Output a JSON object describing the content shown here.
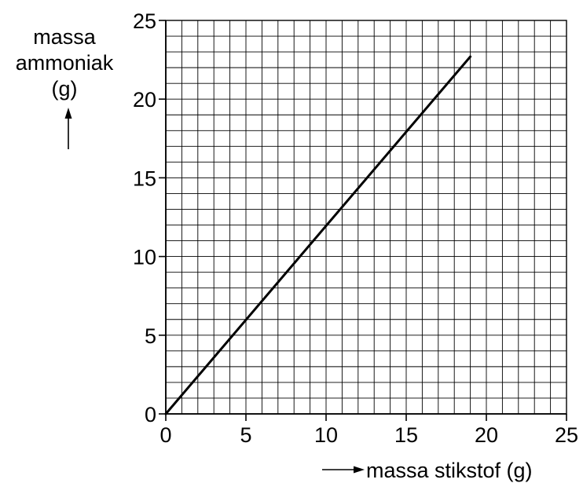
{
  "chart_data": {
    "type": "line",
    "title": "",
    "ylabel_lines": [
      "massa",
      "ammoniak",
      "(g)"
    ],
    "xlabel": "massa stikstof (g)",
    "xlim": [
      0,
      25
    ],
    "ylim": [
      0,
      25
    ],
    "x_ticks": [
      "0",
      "5",
      "10",
      "15",
      "20",
      "25"
    ],
    "y_ticks": [
      "0",
      "5",
      "10",
      "15",
      "20",
      "25"
    ],
    "minor_grid_step": 1,
    "grid": true,
    "legend": "none",
    "series": [
      {
        "x": [
          0,
          19
        ],
        "y": [
          0,
          22.7
        ],
        "color": "#000000"
      }
    ]
  }
}
